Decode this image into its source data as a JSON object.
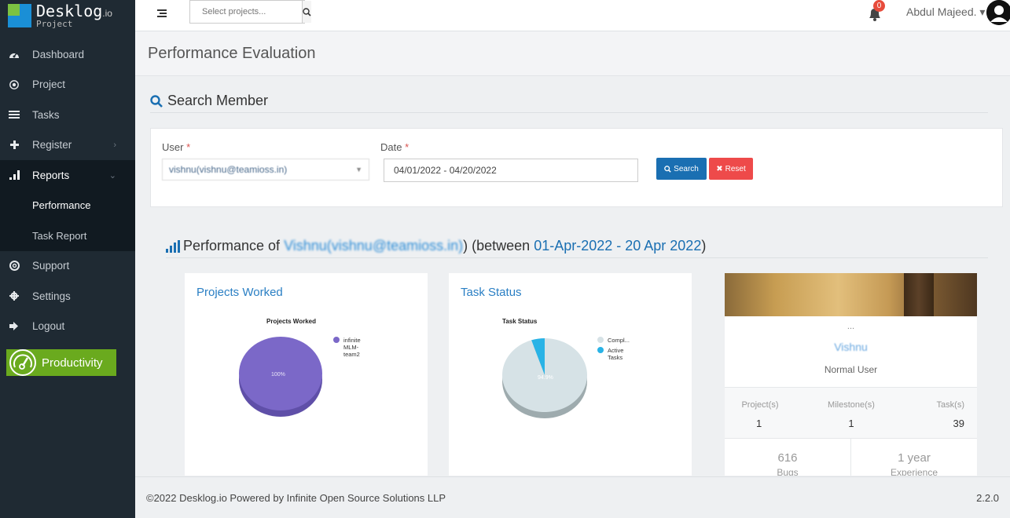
{
  "app": {
    "logo_name": "Desklog",
    "logo_suffix": ".io",
    "logo_sub": "Project"
  },
  "sidebar": {
    "items": [
      {
        "label": "Dashboard",
        "icon": "dashboard-icon"
      },
      {
        "label": "Project",
        "icon": "target-icon"
      },
      {
        "label": "Tasks",
        "icon": "tasks-icon"
      },
      {
        "label": "Register",
        "icon": "plus-icon"
      },
      {
        "label": "Reports",
        "icon": "bar-chart-icon"
      },
      {
        "label": "Support",
        "icon": "lifebuoy-icon"
      },
      {
        "label": "Settings",
        "icon": "gear-icon"
      },
      {
        "label": "Logout",
        "icon": "logout-icon"
      }
    ],
    "reports_sub": [
      "Performance",
      "Task Report"
    ],
    "productivity_label": "Productivity"
  },
  "topbar": {
    "search_placeholder": "Select projects...",
    "notif_count": "0",
    "user_name": "Abdul Majeed."
  },
  "page": {
    "title": "Performance Evaluation"
  },
  "search_member": {
    "heading": "Search Member",
    "user_label": "User",
    "user_value": "vishnu(vishnu@teamioss.in)",
    "date_label": "Date",
    "date_value": "04/01/2022 - 04/20/2022",
    "search_btn": "Search",
    "reset_btn": "Reset",
    "required_mark": "*"
  },
  "performance": {
    "prefix": "Performance of",
    "member": "Vishnu(vishnu@teamioss.in)",
    "between_open": ") (between",
    "range": "01-Apr-2022 - 20 Apr 2022",
    "close": ")"
  },
  "panels": {
    "projects_worked": {
      "heading": "Projects Worked",
      "chart_title": "Projects Worked",
      "legend": [
        "infinite",
        "MLM-",
        "team2"
      ],
      "slice_label": "100%"
    },
    "task_status": {
      "heading": "Task Status",
      "chart_title": "Task Status",
      "legend_completed": "Compl...",
      "legend_active_1": "Active",
      "legend_active_2": "Tasks",
      "slice_label": "94.9%"
    }
  },
  "chart_data": [
    {
      "type": "pie",
      "title": "Projects Worked",
      "categories": [
        "infinite MLM-team2"
      ],
      "values": [
        100
      ],
      "colors": [
        "#7b68c8"
      ]
    },
    {
      "type": "pie",
      "title": "Task Status",
      "categories": [
        "Compl...",
        "Active Tasks"
      ],
      "values": [
        94.9,
        5.1
      ],
      "colors": [
        "#d6e2e6",
        "#29b3e6"
      ]
    }
  ],
  "profile": {
    "dots": "...",
    "name": "Vishnu",
    "role": "Normal User",
    "projects_label": "Project(s)",
    "projects_value": "1",
    "milestones_label": "Milestone(s)",
    "milestones_value": "1",
    "tasks_label": "Task(s)",
    "tasks_value": "39",
    "bugs_value": "616",
    "bugs_label": "Bugs",
    "experience_value": "1 year",
    "experience_label": "Experience"
  },
  "footer": {
    "copyright": "©2022 Desklog.io Powered by Infinite Open Source Solutions LLP",
    "version": "2.2.0"
  }
}
